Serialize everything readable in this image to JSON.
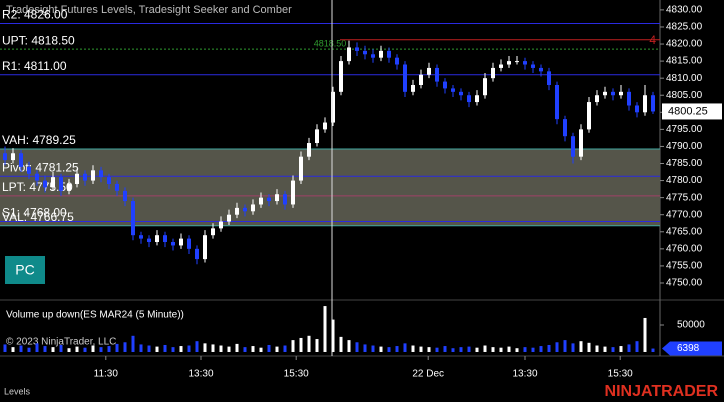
{
  "chart_data": [
    {
      "type": "candlestick",
      "title": "Tradesight Futures Levels, Tradesight Seeker and Comber",
      "up_color": "#ffffff",
      "down_color": "#2040ff",
      "ylim": [
        4745.6,
        4832.9
      ],
      "yticks": [
        {
          "value": 4830,
          "label": "4830.00"
        },
        {
          "value": 4825,
          "label": "4825.00"
        },
        {
          "value": 4820,
          "label": "4820.00"
        },
        {
          "value": 4815,
          "label": "4815.00"
        },
        {
          "value": 4810,
          "label": "4810.00"
        },
        {
          "value": 4805,
          "label": "4805.00"
        },
        {
          "value": 4800,
          "label": "4800.00"
        },
        {
          "value": 4795,
          "label": "4795.00"
        },
        {
          "value": 4790,
          "label": "4790.00"
        },
        {
          "value": 4785,
          "label": "4785.00"
        },
        {
          "value": 4780,
          "label": "4780.00"
        },
        {
          "value": 4775,
          "label": "4775.00"
        },
        {
          "value": 4770,
          "label": "4770.00"
        },
        {
          "value": 4765,
          "label": "4765.00"
        },
        {
          "value": 4760,
          "label": "4760.00"
        },
        {
          "value": 4755,
          "label": "4755.00"
        },
        {
          "value": 4750,
          "label": "4750.00"
        }
      ],
      "xticks": [
        {
          "value": 12.6,
          "label": "11:30"
        },
        {
          "value": 24.5,
          "label": "13:30"
        },
        {
          "value": 36.4,
          "label": "15:30"
        },
        {
          "value": 52.9,
          "label": "22 Dec"
        },
        {
          "value": 65,
          "label": "13:30"
        },
        {
          "value": 76.9,
          "label": "15:30"
        }
      ],
      "levels": [
        {
          "label": "R2: 4826.00",
          "value": 4826,
          "color": "#2a2ae0"
        },
        {
          "label": "UPT: 4818.50",
          "value": 4818.5,
          "color": "#2f9a2f",
          "dashed": true,
          "marker_label": "4818.50"
        },
        {
          "label": "R1: 4811.00",
          "value": 4811,
          "color": "#2a2ae0"
        },
        {
          "label": "VAH: 4789.25",
          "value": 4789.25,
          "color": "#3fa8a0",
          "area": true
        },
        {
          "label": "Pivot: 4781.25",
          "value": 4781.25,
          "color": "#2a2ae0"
        },
        {
          "label": "LPT: 4775.50",
          "value": 4775.5,
          "color": "#a04068"
        },
        {
          "label": "S1: 4768.00",
          "value": 4768,
          "color": "#2a2ae0"
        },
        {
          "label": "VAL: 4766.75",
          "value": 4766.75,
          "color": "#3fa8a0",
          "area": true
        },
        {
          "label": "4",
          "value": 4821.25,
          "color": "#c02020",
          "right": true
        }
      ],
      "area_color": "#55554a",
      "ohlc": [
        [
          4788,
          4790,
          4784.5,
          4786
        ],
        [
          4786,
          4789.5,
          4785,
          4788
        ],
        [
          4788,
          4789,
          4782.5,
          4784
        ],
        [
          4784,
          4785.5,
          4780.5,
          4782
        ],
        [
          4782,
          4783,
          4778.5,
          4780
        ],
        [
          4780,
          4781.5,
          4776.5,
          4778
        ],
        [
          4778,
          4782.5,
          4777,
          4781
        ],
        [
          4781,
          4782,
          4775.5,
          4777
        ],
        [
          4777,
          4780.5,
          4776,
          4779
        ],
        [
          4779,
          4783.5,
          4778,
          4782
        ],
        [
          4782,
          4783,
          4778.5,
          4780
        ],
        [
          4780,
          4784.5,
          4779,
          4783
        ],
        [
          4783,
          4784,
          4779.5,
          4781
        ],
        [
          4781,
          4782,
          4777.5,
          4779
        ],
        [
          4779,
          4780,
          4775.5,
          4777
        ],
        [
          4777,
          4778,
          4772.5,
          4774
        ],
        [
          4774,
          4775,
          4762.5,
          4764
        ],
        [
          4764,
          4765,
          4761.5,
          4763
        ],
        [
          4763,
          4764,
          4760.5,
          4762
        ],
        [
          4762,
          4765.5,
          4761,
          4764
        ],
        [
          4764,
          4765,
          4760.5,
          4762
        ],
        [
          4762,
          4763,
          4759.5,
          4761
        ],
        [
          4761,
          4764.5,
          4760,
          4763
        ],
        [
          4763,
          4764,
          4758.5,
          4760
        ],
        [
          4760,
          4761,
          4755.5,
          4757
        ],
        [
          4757,
          4765.5,
          4756,
          4764
        ],
        [
          4764,
          4767.5,
          4763,
          4766
        ],
        [
          4766,
          4769.5,
          4765,
          4768
        ],
        [
          4768,
          4771.5,
          4767,
          4770
        ],
        [
          4770,
          4773.5,
          4769,
          4772
        ],
        [
          4772,
          4773,
          4769.5,
          4771
        ],
        [
          4771,
          4774.5,
          4770,
          4773
        ],
        [
          4773,
          4776.5,
          4772,
          4775
        ],
        [
          4775,
          4776,
          4772.5,
          4774
        ],
        [
          4774,
          4777.5,
          4773,
          4776
        ],
        [
          4776,
          4777,
          4771.5,
          4773
        ],
        [
          4773,
          4781.5,
          4772,
          4780
        ],
        [
          4780,
          4788.5,
          4779,
          4787
        ],
        [
          4787,
          4792.5,
          4786,
          4791
        ],
        [
          4791,
          4796.5,
          4790,
          4795
        ],
        [
          4795,
          4798.5,
          4794,
          4797
        ],
        [
          4797,
          4807.5,
          4796,
          4806
        ],
        [
          4806,
          4816.5,
          4805,
          4815
        ],
        [
          4815,
          4821,
          4814,
          4819
        ],
        [
          4819,
          4820.5,
          4816.5,
          4818
        ],
        [
          4818,
          4819.5,
          4815.5,
          4817
        ],
        [
          4817,
          4818.5,
          4814.5,
          4816
        ],
        [
          4816,
          4819.5,
          4815,
          4818
        ],
        [
          4818,
          4819,
          4814.5,
          4816
        ],
        [
          4816,
          4817,
          4812.5,
          4814
        ],
        [
          4814,
          4815,
          4804.5,
          4806
        ],
        [
          4806,
          4809.5,
          4805,
          4808
        ],
        [
          4808,
          4812.5,
          4807,
          4811
        ],
        [
          4811,
          4814.5,
          4810,
          4813
        ],
        [
          4813,
          4814,
          4807.5,
          4809
        ],
        [
          4809,
          4810,
          4805.5,
          4807
        ],
        [
          4807,
          4808,
          4804.5,
          4806
        ],
        [
          4806,
          4807,
          4803.5,
          4805
        ],
        [
          4805,
          4806,
          4801.5,
          4803
        ],
        [
          4803,
          4806.5,
          4802,
          4805
        ],
        [
          4805,
          4811.5,
          4804,
          4810
        ],
        [
          4810,
          4814.5,
          4809,
          4813
        ],
        [
          4813,
          4815.5,
          4812,
          4814
        ],
        [
          4814,
          4816.5,
          4813,
          4815
        ],
        [
          4815,
          4816.5,
          4814,
          4815
        ],
        [
          4815,
          4816,
          4812.5,
          4814
        ],
        [
          4814,
          4815,
          4811.5,
          4813
        ],
        [
          4813,
          4814,
          4810.5,
          4812
        ],
        [
          4812,
          4813,
          4806.5,
          4808
        ],
        [
          4808,
          4809,
          4796.5,
          4798
        ],
        [
          4798,
          4799,
          4791.5,
          4793
        ],
        [
          4793,
          4794,
          4785,
          4787
        ],
        [
          4787,
          4796.5,
          4786,
          4795
        ],
        [
          4795,
          4804.5,
          4794,
          4803
        ],
        [
          4803,
          4806.5,
          4802,
          4805
        ],
        [
          4805,
          4807.5,
          4804,
          4806
        ],
        [
          4806,
          4807,
          4803.5,
          4805
        ],
        [
          4805,
          4808,
          4804,
          4806
        ],
        [
          4806,
          4807,
          4800.5,
          4802
        ],
        [
          4802,
          4803,
          4798.5,
          4800
        ],
        [
          4800,
          4808,
          4799,
          4805
        ],
        [
          4805,
          4806,
          4799.5,
          4800.25
        ]
      ],
      "button": "PC",
      "copyright": "© 2023 NinjaTrader, LLC",
      "footer_label": "Levels",
      "logo": "NINJATRADER"
    },
    {
      "type": "bar",
      "title": "Volume up down(ES MAR24 (5 Minute))",
      "up_color": "#ffffff",
      "down_color": "#2040ff",
      "ylim": [
        0,
        87000
      ],
      "yticks": [
        50000
      ],
      "values": [
        14000,
        9000,
        12000,
        8000,
        16000,
        11000,
        9000,
        13000,
        7000,
        10000,
        8000,
        12000,
        9000,
        11000,
        15000,
        18000,
        30000,
        14000,
        12000,
        10000,
        13000,
        9000,
        11000,
        12000,
        20000,
        16000,
        14000,
        12000,
        10000,
        15000,
        9000,
        11000,
        8000,
        13000,
        10000,
        12000,
        22000,
        26000,
        30000,
        24000,
        85000,
        60000,
        28000,
        22000,
        18000,
        14000,
        12000,
        10000,
        9000,
        11000,
        16000,
        12000,
        10000,
        9000,
        8000,
        11000,
        7000,
        9000,
        10000,
        8000,
        12000,
        9000,
        8000,
        10000,
        7000,
        9000,
        8000,
        11000,
        13000,
        18000,
        22000,
        16000,
        20000,
        17000,
        12000,
        10000,
        9000,
        11000,
        14000,
        20000,
        63000,
        6398
      ]
    }
  ]
}
